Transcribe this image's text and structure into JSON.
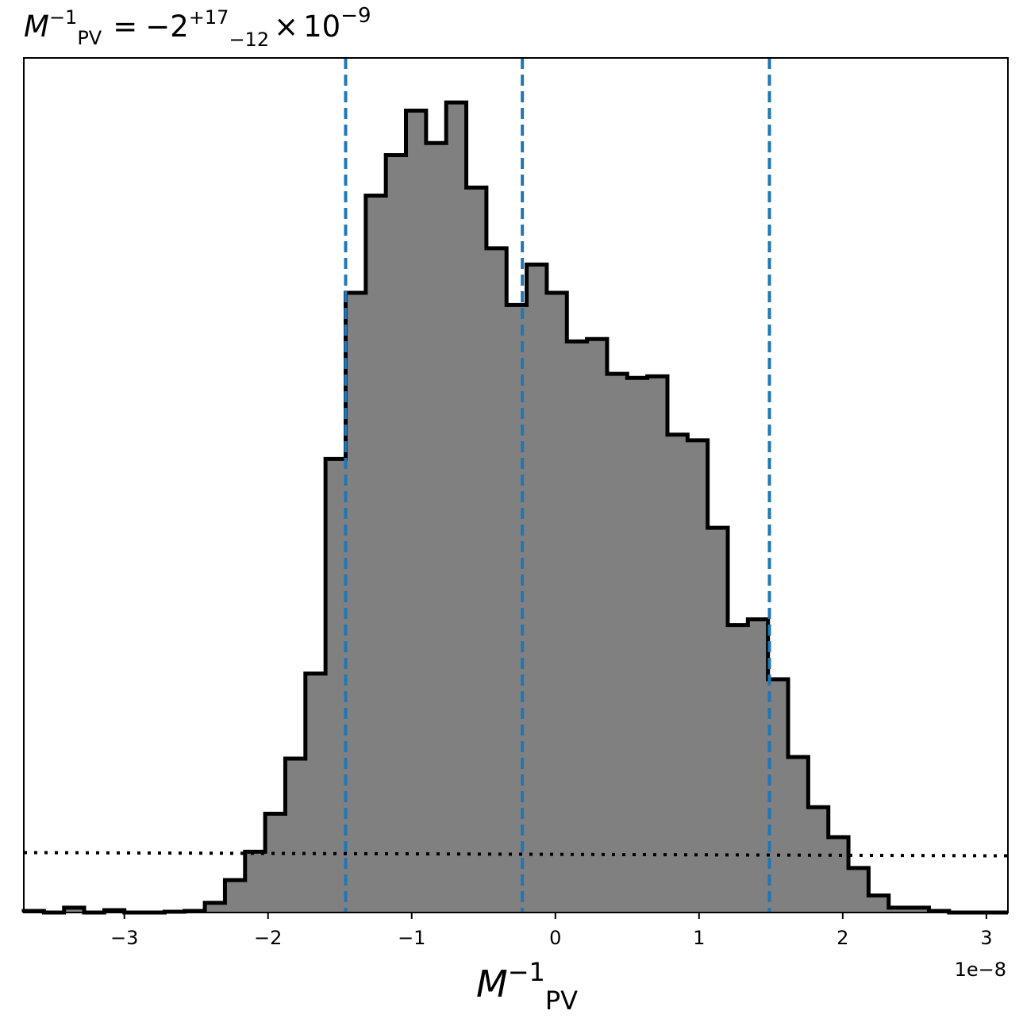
{
  "chart_data": {
    "type": "histogram",
    "title": {
      "var": "M",
      "var_sub": "PV",
      "var_sup": "−1",
      "equals": "=",
      "value": "−2",
      "err_plus": "+17",
      "err_minus": "−12",
      "times": "×",
      "base": "10",
      "exponent": "−9"
    },
    "xlabel": {
      "var": "M",
      "sub": "PV",
      "sup": "−1"
    },
    "x_offset_label": "1e−8",
    "xlim": [
      -3.7,
      3.15
    ],
    "ylim": [
      0,
      1.055
    ],
    "grid": false,
    "bin_edges": [
      -3.7,
      -3.56,
      -3.42,
      -3.28,
      -3.14,
      -3.0,
      -2.86,
      -2.72,
      -2.58,
      -2.44,
      -2.3,
      -2.16,
      -2.02,
      -1.88,
      -1.74,
      -1.6,
      -1.46,
      -1.32,
      -1.18,
      -1.04,
      -0.9,
      -0.76,
      -0.62,
      -0.48,
      -0.34,
      -0.2,
      -0.06,
      0.08,
      0.22,
      0.36,
      0.5,
      0.64,
      0.78,
      0.92,
      1.06,
      1.2,
      1.34,
      1.48,
      1.62,
      1.76,
      1.9,
      2.04,
      2.18,
      2.32,
      2.46,
      2.6,
      2.74,
      2.88,
      3.02,
      3.16
    ],
    "counts": [
      0.002,
      0.0,
      0.006,
      0.0,
      0.003,
      0.0,
      0.0,
      0.001,
      0.002,
      0.012,
      0.04,
      0.075,
      0.122,
      0.19,
      0.295,
      0.56,
      0.765,
      0.885,
      0.935,
      0.99,
      0.95,
      1.0,
      0.895,
      0.82,
      0.75,
      0.8,
      0.765,
      0.705,
      0.708,
      0.665,
      0.66,
      0.662,
      0.59,
      0.583,
      0.475,
      0.355,
      0.362,
      0.288,
      0.192,
      0.13,
      0.093,
      0.055,
      0.021,
      0.006,
      0.006,
      0.002,
      0.0,
      0.0,
      0.0
    ],
    "vlines": {
      "values": [
        -1.46,
        -0.23,
        1.49
      ],
      "color": "#1f77b4",
      "style": "dashed"
    },
    "prior_line": {
      "y_start": 0.074,
      "y_end": 0.07,
      "color": "#000000",
      "style": "dotted"
    },
    "fill_color": "#808080",
    "edge_color": "#000000",
    "xticks": [
      {
        "value": -3,
        "label": "−3"
      },
      {
        "value": -2,
        "label": "−2"
      },
      {
        "value": -1,
        "label": "−1"
      },
      {
        "value": 0,
        "label": "0"
      },
      {
        "value": 1,
        "label": "1"
      },
      {
        "value": 2,
        "label": "2"
      },
      {
        "value": 3,
        "label": "3"
      }
    ]
  }
}
